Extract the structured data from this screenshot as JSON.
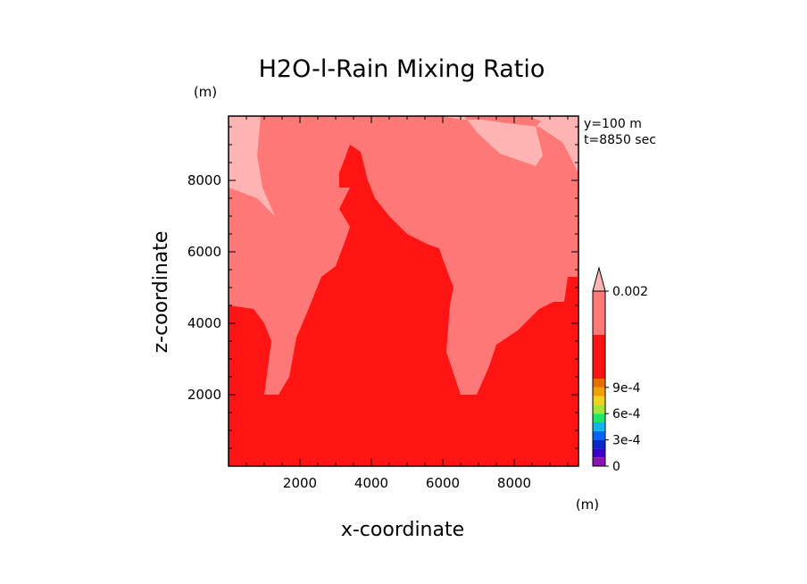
{
  "chart_data": {
    "type": "contour",
    "title": "H2O-l-Rain Mixing Ratio",
    "xlabel": "x-coordinate",
    "ylabel": "z-coordinate",
    "xunit": "(m)",
    "yunit": "(m)",
    "xlim": [
      0,
      9800
    ],
    "ylim": [
      0,
      9800
    ],
    "xticks": [
      2000,
      4000,
      6000,
      8000
    ],
    "yticks": [
      2000,
      4000,
      6000,
      8000
    ],
    "annotations": [
      "y=100 m",
      "t=8850 sec"
    ],
    "colorbar": {
      "labels": [
        {
          "text": "0.002",
          "value": 0.002
        },
        {
          "text": "9e-4",
          "value": 0.0009
        },
        {
          "text": "6e-4",
          "value": 0.0006
        },
        {
          "text": "3e-4",
          "value": 0.0003
        },
        {
          "text": "0",
          "value": 0
        }
      ],
      "levels": [
        {
          "from": 0,
          "to": 0.0001,
          "color": "#8c14b4"
        },
        {
          "from": 0.0001,
          "to": 0.0002,
          "color": "#3c00c8"
        },
        {
          "from": 0.0002,
          "to": 0.0003,
          "color": "#0a28c8"
        },
        {
          "from": 0.0003,
          "to": 0.0004,
          "color": "#0064ff"
        },
        {
          "from": 0.0004,
          "to": 0.0005,
          "color": "#14b4f0"
        },
        {
          "from": 0.0005,
          "to": 0.0006,
          "color": "#1ee664"
        },
        {
          "from": 0.0006,
          "to": 0.0007,
          "color": "#a0e632"
        },
        {
          "from": 0.0007,
          "to": 0.0008,
          "color": "#f0d21e"
        },
        {
          "from": 0.0008,
          "to": 0.0009,
          "color": "#f0a000"
        },
        {
          "from": 0.0009,
          "to": 0.001,
          "color": "#e66e00"
        },
        {
          "from": 0.001,
          "to": 0.0015,
          "color": "#ff1414"
        },
        {
          "from": 0.0015,
          "to": 0.002,
          "color": "#ff7878"
        },
        {
          "from": 0.002,
          "to": null,
          "color": "#ffb4b4"
        }
      ]
    },
    "regions": [
      {
        "level": "0.002+",
        "color": "#ffb4b4",
        "polygons": [
          [
            [
              0,
              9800
            ],
            [
              900,
              9800
            ],
            [
              800,
              8700
            ],
            [
              950,
              7800
            ],
            [
              1300,
              7000
            ],
            [
              800,
              7500
            ],
            [
              0,
              7800
            ]
          ],
          [
            [
              5000,
              9800
            ],
            [
              6600,
              9800
            ],
            [
              7000,
              9300
            ],
            [
              7600,
              8750
            ],
            [
              8600,
              8400
            ],
            [
              8800,
              8700
            ],
            [
              8600,
              9500
            ],
            [
              8900,
              9800
            ],
            [
              9800,
              9800
            ],
            [
              9800,
              8700
            ],
            [
              9300,
              9100
            ],
            [
              9000,
              9300
            ],
            [
              8700,
              9500
            ],
            [
              7800,
              9600
            ],
            [
              7100,
              9700
            ],
            [
              6600,
              9700
            ],
            [
              5900,
              9800
            ]
          ],
          [
            [
              8400,
              9800
            ],
            [
              9800,
              9800
            ],
            [
              9800,
              8200
            ],
            [
              9500,
              8800
            ],
            [
              9100,
              9500
            ]
          ]
        ]
      },
      {
        "level": "0.001-0.002",
        "color": "#ff1414",
        "polygons": [
          [
            [
              0,
              0
            ],
            [
              9800,
              0
            ],
            [
              9800,
              5300
            ],
            [
              9500,
              5300
            ],
            [
              9400,
              4600
            ],
            [
              9100,
              4600
            ],
            [
              8700,
              4400
            ],
            [
              8100,
              3800
            ],
            [
              7500,
              3400
            ],
            [
              7300,
              2800
            ],
            [
              6950,
              2000
            ],
            [
              6500,
              2000
            ],
            [
              6400,
              2300
            ],
            [
              6100,
              3200
            ],
            [
              6200,
              4500
            ],
            [
              6300,
              5000
            ],
            [
              6000,
              5800
            ],
            [
              5900,
              6100
            ],
            [
              5600,
              6200
            ],
            [
              5000,
              6500
            ],
            [
              4500,
              7000
            ],
            [
              4100,
              7500
            ],
            [
              3900,
              8000
            ],
            [
              3700,
              8800
            ],
            [
              3400,
              9000
            ],
            [
              3100,
              8200
            ],
            [
              3100,
              7800
            ],
            [
              3400,
              7800
            ],
            [
              3100,
              7200
            ],
            [
              3400,
              6700
            ],
            [
              3300,
              6400
            ],
            [
              3000,
              5600
            ],
            [
              2600,
              5300
            ],
            [
              2400,
              4800
            ],
            [
              2200,
              4300
            ],
            [
              1900,
              3600
            ],
            [
              1700,
              2500
            ],
            [
              1400,
              2000
            ],
            [
              1000,
              2000
            ],
            [
              1200,
              3500
            ],
            [
              1000,
              4000
            ],
            [
              700,
              4400
            ],
            [
              0,
              4500
            ]
          ]
        ]
      },
      {
        "level": "0.0015-0.002 (background)",
        "color": "#ff7878",
        "polygons": [
          [
            [
              0,
              0
            ],
            [
              9800,
              0
            ],
            [
              9800,
              9800
            ],
            [
              0,
              9800
            ]
          ]
        ]
      }
    ]
  }
}
